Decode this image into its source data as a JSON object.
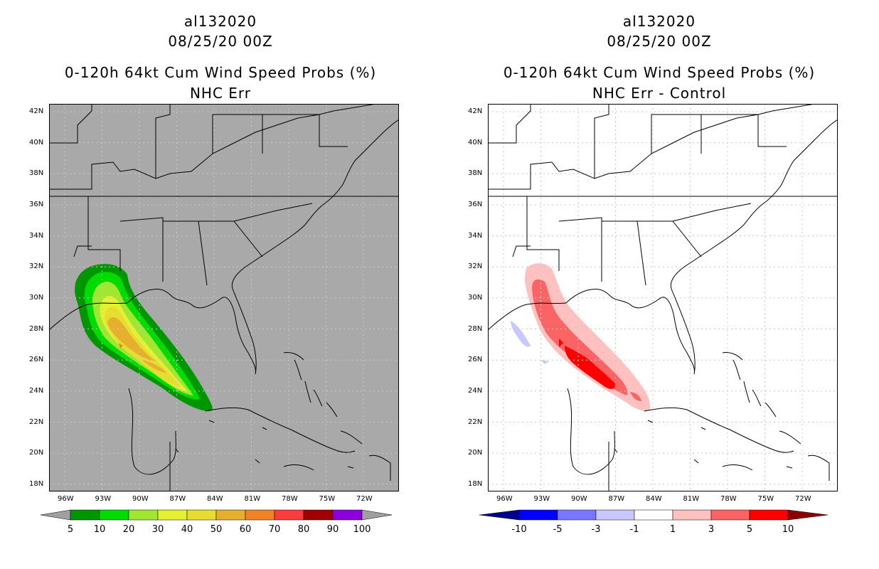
{
  "left_panel": {
    "storm_id": "al132020",
    "datetime": "08/25/20 00Z",
    "product": "0-120h 64kt Cum Wind Speed Probs (%)",
    "subtitle": "NHC Err",
    "background_color": "#a9a9a9",
    "colorbar": {
      "labels": [
        "5",
        "10",
        "20",
        "30",
        "40",
        "50",
        "60",
        "70",
        "80",
        "90",
        "100"
      ],
      "colors": [
        "#009600",
        "#00dc00",
        "#a0e632",
        "#e6f032",
        "#e6dc32",
        "#e6af2d",
        "#f08228",
        "#fa3c3c",
        "#a00000",
        "#8c00dc"
      ],
      "extend_color": "#a0a0a0"
    }
  },
  "right_panel": {
    "storm_id": "al132020",
    "datetime": "08/25/20 00Z",
    "product": "0-120h 64kt Cum Wind Speed Probs (%)",
    "subtitle": "NHC Err - Control",
    "background_color": "#ffffff",
    "colorbar": {
      "labels": [
        "-10",
        "-5",
        "-3",
        "-1",
        "1",
        "3",
        "5",
        "10"
      ],
      "colors": [
        "#0000ff",
        "#7878ff",
        "#c8c8ff",
        "#ffffff",
        "#ffc0c0",
        "#fa6464",
        "#ff0000"
      ],
      "low_extend_color": "#00008b",
      "high_extend_color": "#8b0000"
    }
  },
  "axes": {
    "lat_labels": [
      "42N",
      "40N",
      "38N",
      "36N",
      "34N",
      "32N",
      "30N",
      "28N",
      "26N",
      "24N",
      "22N",
      "20N",
      "18N"
    ],
    "lon_labels": [
      "96W",
      "93W",
      "90W",
      "87W",
      "84W",
      "81W",
      "78W",
      "75W",
      "72W"
    ]
  }
}
